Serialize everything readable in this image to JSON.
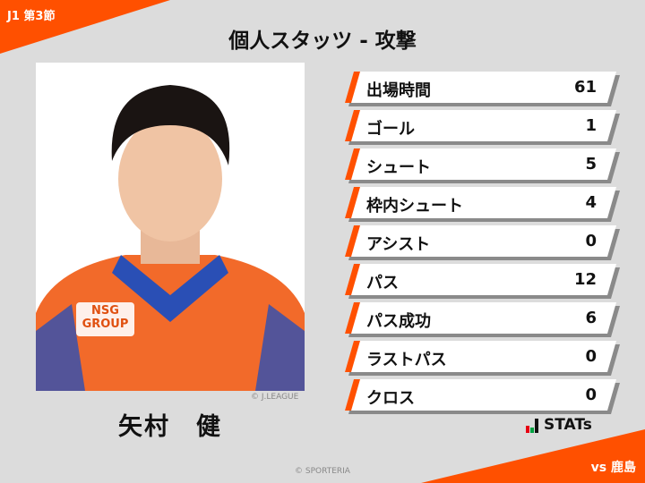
{
  "header": {
    "round": "J1 第3節",
    "title": "個人スタッツ - 攻撃"
  },
  "player": {
    "name": "矢村　健",
    "photo_credit": "© J.LEAGUE",
    "sponsor": "NSG GROUP"
  },
  "stats": [
    {
      "label": "出場時間",
      "value": "61"
    },
    {
      "label": "ゴール",
      "value": "1"
    },
    {
      "label": "シュート",
      "value": "5"
    },
    {
      "label": "枠内シュート",
      "value": "4"
    },
    {
      "label": "アシスト",
      "value": "0"
    },
    {
      "label": "パス",
      "value": "12"
    },
    {
      "label": "パス成功",
      "value": "6"
    },
    {
      "label": "ラストパス",
      "value": "0"
    },
    {
      "label": "クロス",
      "value": "0"
    }
  ],
  "logo": {
    "text": "STATs",
    "colors": [
      "#e60012",
      "#00a040",
      "#111111"
    ]
  },
  "opponent": "vs 鹿島",
  "footer": "© SPORTERIA",
  "colors": {
    "accent": "#ff5000",
    "background": "#dcdcdc"
  }
}
